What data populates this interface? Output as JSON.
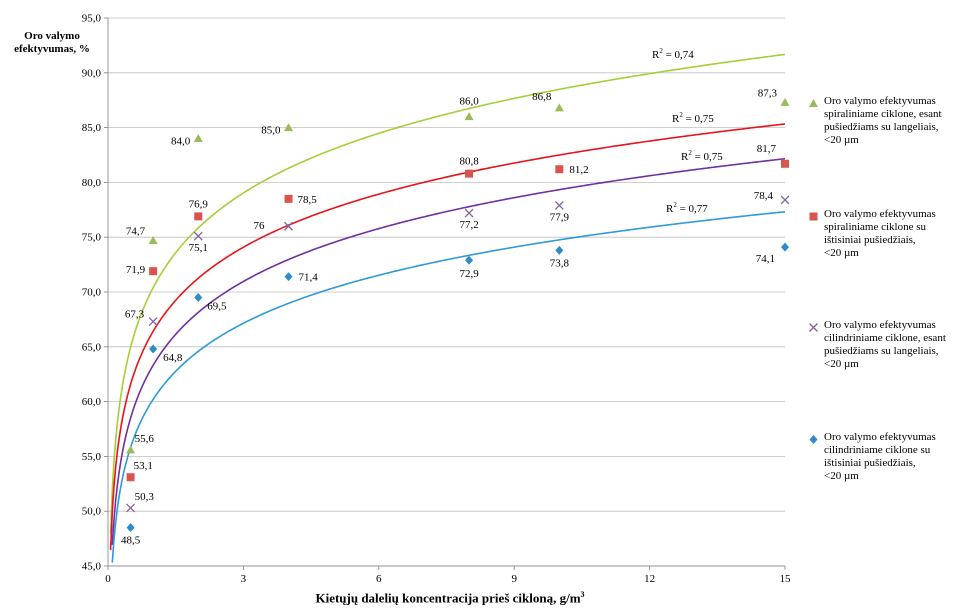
{
  "chart_data": {
    "type": "scatter",
    "ylabel": "Oro valymo efektyvumas, %",
    "xlabel_main": "Kietųjų dalelių koncentracija prieš cikloną, g/m",
    "xlabel_sup": "3",
    "xlim": [
      0,
      15
    ],
    "ylim": [
      45,
      95
    ],
    "x_ticks": [
      "0",
      "3",
      "6",
      "9",
      "12",
      "15"
    ],
    "y_ticks": [
      "45,0",
      "50,0",
      "55,0",
      "60,0",
      "65,0",
      "70,0",
      "75,0",
      "80,0",
      "85,0",
      "90,0",
      "95,0"
    ],
    "grid": "horizontal",
    "legend_position": "right",
    "series": [
      {
        "name": "Oro valymo efektyvumas spiraliniame ciklone, esant pušiedžiams su langeliais, <20 µm",
        "marker": "triangle",
        "color": "#9BBB59",
        "line_color": "#A6CE39",
        "x": [
          0.5,
          1,
          2,
          4,
          8,
          10,
          15
        ],
        "y": [
          55.6,
          74.7,
          84.0,
          85.0,
          86.0,
          86.8,
          87.3
        ],
        "labels": [
          "55,6",
          "74,7",
          "84,0",
          "85,0",
          "86,0",
          "86,8",
          "87,3"
        ],
        "r2": "0,74"
      },
      {
        "name": "Oro valymo efektyvumas spiraliniame ciklone su ištisiniai pušiedžiais, <20 µm",
        "marker": "square",
        "color": "#D9534F",
        "line_color": "#E8141B",
        "x": [
          0.5,
          1,
          2,
          4,
          8,
          10,
          15
        ],
        "y": [
          53.1,
          71.9,
          76.9,
          78.5,
          80.8,
          81.2,
          81.7
        ],
        "labels": [
          "53,1",
          "71,9",
          "76,9",
          "78,5",
          "80,8",
          "81,2",
          "81,7"
        ],
        "r2": "0,75"
      },
      {
        "name": "Oro valymo efektyvumas cilindriniame ciklone, esant pušiedžiams su langeliais, <20 µm",
        "marker": "x",
        "color": "#8064A2",
        "line_color": "#7030A0",
        "x": [
          0.5,
          1,
          2,
          4,
          8,
          10,
          15
        ],
        "y": [
          50.3,
          67.3,
          75.1,
          76.0,
          77.2,
          77.9,
          78.4
        ],
        "labels": [
          "50,3",
          "67,3",
          "75,1",
          "76",
          "77,2",
          "77,9",
          "78,4"
        ],
        "r2": "0,75"
      },
      {
        "name": "Oro valymo efektyvumas cilindriniame ciklone su ištisiniai pušiedžiais, <20 µm",
        "marker": "diamond",
        "color": "#2E8BC9",
        "line_color": "#2E9AD8",
        "x": [
          0.5,
          1,
          2,
          4,
          8,
          10,
          15
        ],
        "y": [
          48.5,
          64.8,
          69.5,
          71.4,
          72.9,
          73.8,
          74.1
        ],
        "labels": [
          "48,5",
          "64,8",
          "69,5",
          "71,4",
          "72,9",
          "73,8",
          "74,1"
        ],
        "r2": "0,77"
      }
    ],
    "legend": [
      {
        "marker": "triangle",
        "color": "#9BBB59",
        "lines": [
          "Oro valymo efektyvumas",
          "spiraliniame ciklone, esant",
          "pušiedžiams su langeliais,",
          "<20 µm"
        ]
      },
      {
        "marker": "square",
        "color": "#D9534F",
        "lines": [
          "Oro valymo efektyvumas",
          "spiraliniame ciklone su",
          "ištisiniai pušiedžiais,",
          "<20 µm"
        ]
      },
      {
        "marker": "x",
        "color": "#8064A2",
        "lines": [
          "Oro valymo efektyvumas",
          "cilindriniame ciklone, esant",
          "pušiedžiams su langeliais,",
          "<20 µm"
        ]
      },
      {
        "marker": "diamond",
        "color": "#2E8BC9",
        "lines": [
          "Oro valymo efektyvumas",
          "cilindriniame ciklone su",
          "ištisiniai pušiedžiais,",
          "<20 µm"
        ]
      }
    ]
  }
}
